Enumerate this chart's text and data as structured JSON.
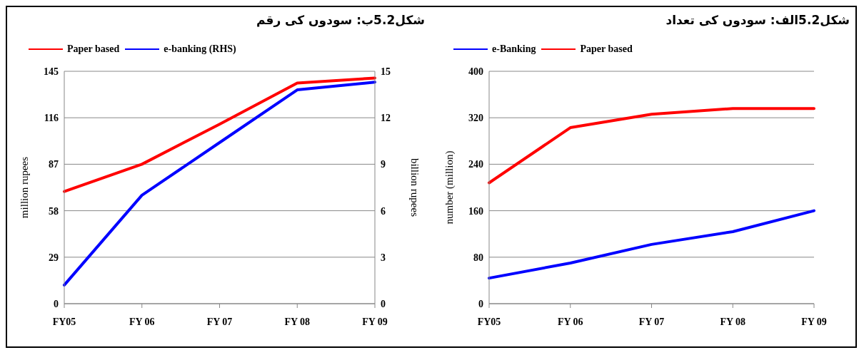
{
  "chart_data": [
    {
      "type": "line",
      "title": "شکل5.2ب: سودوں کی رقم",
      "categories": [
        "FY05",
        "FY 06",
        "FY 07",
        "FY 08",
        "FY 09"
      ],
      "ylabel": "million rupees",
      "y2label": "billion rupees",
      "ylim": [
        0,
        145
      ],
      "yticks": [
        0,
        29,
        58,
        87,
        116,
        145
      ],
      "y2lim": [
        0,
        15
      ],
      "y2ticks": [
        0,
        3,
        6,
        9,
        12,
        15
      ],
      "grid": "y",
      "legend": "top left",
      "series": [
        {
          "name": "Paper based",
          "color": "#ff0000",
          "values": [
            70,
            87,
            112,
            137.7,
            140.8
          ]
        },
        {
          "name": "e-banking (RHS)",
          "color": "#0000ff",
          "axis": "y2",
          "values": [
            1.2,
            7.0,
            10.4,
            13.8,
            14.3
          ]
        }
      ]
    },
    {
      "type": "line",
      "title": "شکل5.2الف: سودوں کی تعداد",
      "categories": [
        "FY05",
        "FY 06",
        "FY 07",
        "FY 08",
        "FY 09"
      ],
      "ylabel": "number (million)",
      "ylim": [
        0,
        400
      ],
      "yticks": [
        0,
        80,
        160,
        240,
        320,
        400
      ],
      "grid": "y",
      "legend": "top left",
      "series": [
        {
          "name": "e-Banking",
          "color": "#0000ff",
          "values": [
            44,
            70,
            102,
            124,
            160
          ]
        },
        {
          "name": "Paper based",
          "color": "#ff0000",
          "values": [
            208,
            303,
            326,
            336,
            336
          ]
        }
      ]
    }
  ]
}
